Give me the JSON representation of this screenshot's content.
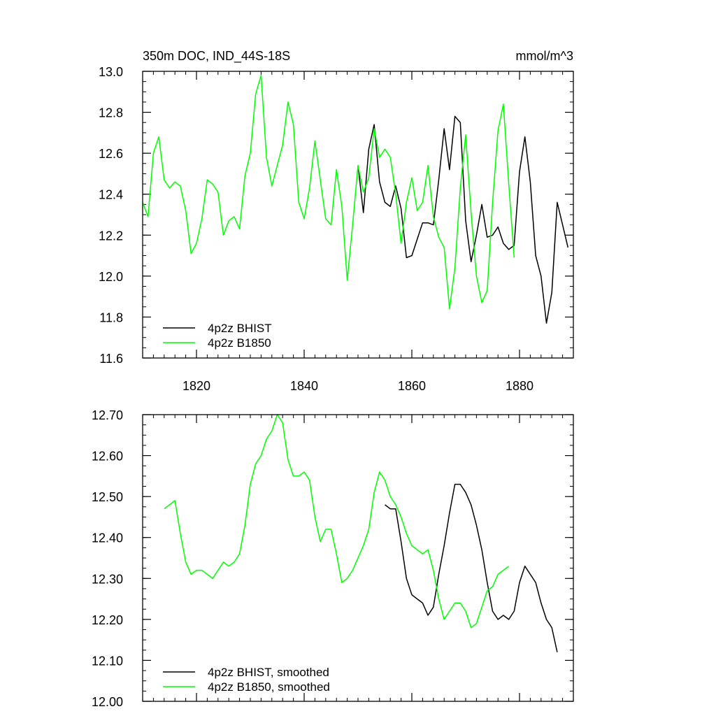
{
  "chart_data": [
    {
      "type": "line",
      "title": "350m DOC, IND_44S-18S",
      "units": "mmol/m^3",
      "xlabel": "",
      "ylabel": "",
      "xlim": [
        1810,
        1890
      ],
      "ylim": [
        11.6,
        13.0
      ],
      "xticks": [
        1820,
        1840,
        1860,
        1880
      ],
      "xtick_labels": [
        "1820",
        "1840",
        "1860",
        "1880"
      ],
      "yticks": [
        11.6,
        11.8,
        12.0,
        12.2,
        12.4,
        12.6,
        12.8,
        13.0
      ],
      "ytick_labels": [
        "11.6",
        "11.8",
        "12.0",
        "12.2",
        "12.4",
        "12.6",
        "12.8",
        "13.0"
      ],
      "grid": false,
      "legend": "bottom-left",
      "series": [
        {
          "name": "4p2z BHIST",
          "color": "#000000",
          "x": [
            1850,
            1851,
            1852,
            1853,
            1854,
            1855,
            1856,
            1857,
            1858,
            1859,
            1860,
            1861,
            1862,
            1863,
            1864,
            1865,
            1866,
            1867,
            1868,
            1869,
            1870,
            1871,
            1872,
            1873,
            1874,
            1875,
            1876,
            1877,
            1878,
            1879,
            1880,
            1881,
            1882,
            1883,
            1884,
            1885,
            1886,
            1887,
            1888,
            1889
          ],
          "y": [
            12.54,
            12.31,
            12.62,
            12.74,
            12.46,
            12.36,
            12.34,
            12.44,
            12.33,
            12.09,
            12.1,
            12.18,
            12.26,
            12.26,
            12.25,
            12.47,
            12.72,
            12.52,
            12.78,
            12.75,
            12.27,
            12.07,
            12.2,
            12.35,
            12.19,
            12.2,
            12.24,
            12.16,
            12.13,
            12.15,
            12.51,
            12.68,
            12.46,
            12.1,
            12.0,
            11.77,
            11.92,
            12.36,
            12.25,
            12.14
          ]
        },
        {
          "name": "4p2z B1850",
          "color": "#00ff00",
          "x": [
            1810,
            1811,
            1812,
            1813,
            1814,
            1815,
            1816,
            1817,
            1818,
            1819,
            1820,
            1821,
            1822,
            1823,
            1824,
            1825,
            1826,
            1827,
            1828,
            1829,
            1830,
            1831,
            1832,
            1833,
            1834,
            1835,
            1836,
            1837,
            1838,
            1839,
            1840,
            1841,
            1842,
            1843,
            1844,
            1845,
            1846,
            1847,
            1848,
            1849,
            1850,
            1851,
            1852,
            1853,
            1854,
            1855,
            1856,
            1857,
            1858,
            1859,
            1860,
            1861,
            1862,
            1863,
            1864,
            1865,
            1866,
            1867,
            1868,
            1869,
            1870,
            1871,
            1872,
            1873,
            1874,
            1875,
            1876,
            1877,
            1878,
            1879
          ],
          "y": [
            12.36,
            12.29,
            12.6,
            12.68,
            12.47,
            12.43,
            12.46,
            12.44,
            12.32,
            12.11,
            12.16,
            12.28,
            12.47,
            12.45,
            12.41,
            12.2,
            12.27,
            12.29,
            12.23,
            12.49,
            12.6,
            12.89,
            12.98,
            12.58,
            12.44,
            12.54,
            12.64,
            12.85,
            12.74,
            12.36,
            12.28,
            12.43,
            12.66,
            12.47,
            12.28,
            12.25,
            12.52,
            12.34,
            11.98,
            12.25,
            12.54,
            12.41,
            12.48,
            12.72,
            12.58,
            12.62,
            12.58,
            12.4,
            12.16,
            12.36,
            12.48,
            12.32,
            12.36,
            12.54,
            12.29,
            12.19,
            12.14,
            11.84,
            12.04,
            12.43,
            12.69,
            12.31,
            12.0,
            11.87,
            11.93,
            12.36,
            12.71,
            12.84,
            12.45,
            12.09
          ]
        }
      ]
    },
    {
      "type": "line",
      "title": "",
      "xlabel": "",
      "ylabel": "",
      "xlim": [
        1810,
        1890
      ],
      "ylim": [
        12.0,
        12.7
      ],
      "xticks": [
        1820,
        1840,
        1860,
        1880
      ],
      "yticks": [
        12.0,
        12.1,
        12.2,
        12.3,
        12.4,
        12.5,
        12.6,
        12.7
      ],
      "ytick_labels": [
        "12.00",
        "12.10",
        "12.20",
        "12.30",
        "12.40",
        "12.50",
        "12.60",
        "12.70"
      ],
      "grid": false,
      "legend": "bottom-left",
      "series": [
        {
          "name": "4p2z BHIST, smoothed",
          "color": "#000000",
          "x": [
            1855,
            1856,
            1857,
            1858,
            1859,
            1860,
            1861,
            1862,
            1863,
            1864,
            1865,
            1866,
            1867,
            1868,
            1869,
            1870,
            1871,
            1872,
            1873,
            1874,
            1875,
            1876,
            1877,
            1878,
            1879,
            1880,
            1881,
            1882,
            1883,
            1884,
            1885,
            1886,
            1887
          ],
          "y": [
            12.48,
            12.47,
            12.47,
            12.39,
            12.3,
            12.26,
            12.25,
            12.24,
            12.21,
            12.23,
            12.31,
            12.38,
            12.46,
            12.53,
            12.53,
            12.51,
            12.48,
            12.43,
            12.37,
            12.29,
            12.22,
            12.2,
            12.21,
            12.2,
            12.22,
            12.29,
            12.33,
            12.31,
            12.29,
            12.24,
            12.2,
            12.18,
            12.12
          ]
        },
        {
          "name": "4p2z B1850, smoothed",
          "color": "#00ff00",
          "x": [
            1814,
            1815,
            1816,
            1817,
            1818,
            1819,
            1820,
            1821,
            1822,
            1823,
            1824,
            1825,
            1826,
            1827,
            1828,
            1829,
            1830,
            1831,
            1832,
            1833,
            1834,
            1835,
            1836,
            1837,
            1838,
            1839,
            1840,
            1841,
            1842,
            1843,
            1844,
            1845,
            1846,
            1847,
            1848,
            1849,
            1850,
            1851,
            1852,
            1853,
            1854,
            1855,
            1856,
            1857,
            1858,
            1859,
            1860,
            1861,
            1862,
            1863,
            1864,
            1865,
            1866,
            1867,
            1868,
            1869,
            1870,
            1871,
            1872,
            1873,
            1874,
            1875,
            1876,
            1877,
            1878
          ],
          "y": [
            12.47,
            12.48,
            12.49,
            12.41,
            12.34,
            12.31,
            12.32,
            12.32,
            12.31,
            12.3,
            12.32,
            12.34,
            12.33,
            12.34,
            12.36,
            12.43,
            12.53,
            12.58,
            12.6,
            12.64,
            12.66,
            12.7,
            12.68,
            12.59,
            12.55,
            12.55,
            12.56,
            12.54,
            12.45,
            12.39,
            12.42,
            12.42,
            12.36,
            12.29,
            12.3,
            12.32,
            12.35,
            12.38,
            12.42,
            12.51,
            12.56,
            12.54,
            12.5,
            12.48,
            12.45,
            12.41,
            12.38,
            12.37,
            12.36,
            12.37,
            12.32,
            12.25,
            12.2,
            12.22,
            12.24,
            12.24,
            12.22,
            12.18,
            12.19,
            12.23,
            12.27,
            12.28,
            12.31,
            12.32,
            12.33
          ]
        }
      ]
    }
  ]
}
